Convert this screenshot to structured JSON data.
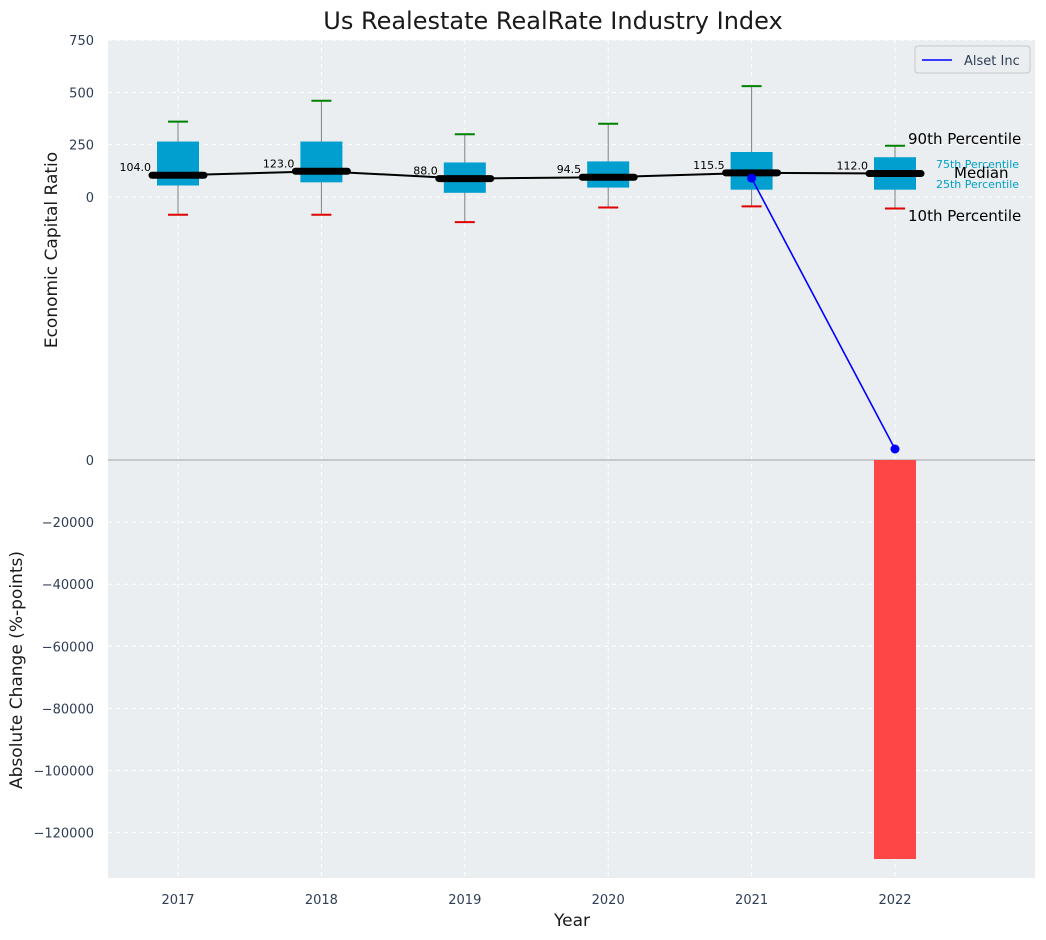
{
  "title": "Us Realestate RealRate Industry Index",
  "legend": {
    "label": "Alset Inc",
    "placement": "top-right"
  },
  "colors": {
    "panel_bg": "#eaeef0",
    "box": "#009fcf",
    "median_line": "#000000",
    "company_line": "#0000ff",
    "whisker_high": "#008000",
    "whisker_low": "#e00000",
    "bar": "#ff3c3c"
  },
  "percentile_labels": {
    "p90": "90th Percentile",
    "p75": "75th Percentile",
    "median": "Median",
    "p25": "25th Percentile",
    "p10": "10th Percentile"
  },
  "chart_data": [
    {
      "type": "box",
      "panel": "top",
      "ylabel": "Economic Capital Ratio",
      "ylim": [
        -1250,
        750
      ],
      "yticks": [
        0,
        250,
        500,
        750
      ],
      "categories": [
        "2017",
        "2018",
        "2019",
        "2020",
        "2021",
        "2022"
      ],
      "p10": [
        -85,
        -85,
        -120,
        -50,
        -45,
        -55
      ],
      "p25": [
        55,
        70,
        20,
        45,
        35,
        35
      ],
      "median": [
        104.0,
        123.0,
        88.0,
        94.5,
        115.5,
        112.0
      ],
      "p75": [
        265,
        265,
        165,
        170,
        215,
        190
      ],
      "p90": [
        360,
        460,
        300,
        350,
        530,
        245
      ],
      "median_labels": [
        "104.0",
        "123.0",
        "88.0",
        "94.5",
        "115.5",
        "112.0"
      ],
      "series": [
        {
          "name": "Alset Inc",
          "x": [
            "2021",
            "2022"
          ],
          "values": [
            90,
            -1200
          ]
        }
      ],
      "grid": true
    },
    {
      "type": "bar",
      "panel": "bottom",
      "xlabel": "Year",
      "ylabel": "Absolute Change (%-points)",
      "ylim": [
        -134000,
        0
      ],
      "yticks": [
        0,
        -20000,
        -40000,
        -60000,
        -80000,
        -100000,
        -120000
      ],
      "ytick_labels": [
        "0",
        "−20000",
        "−40000",
        "−60000",
        "−80000",
        "−100000",
        "−120000"
      ],
      "categories": [
        "2017",
        "2018",
        "2019",
        "2020",
        "2021",
        "2022"
      ],
      "values": [
        0,
        0,
        0,
        0,
        0,
        -128500
      ],
      "grid": true
    }
  ]
}
